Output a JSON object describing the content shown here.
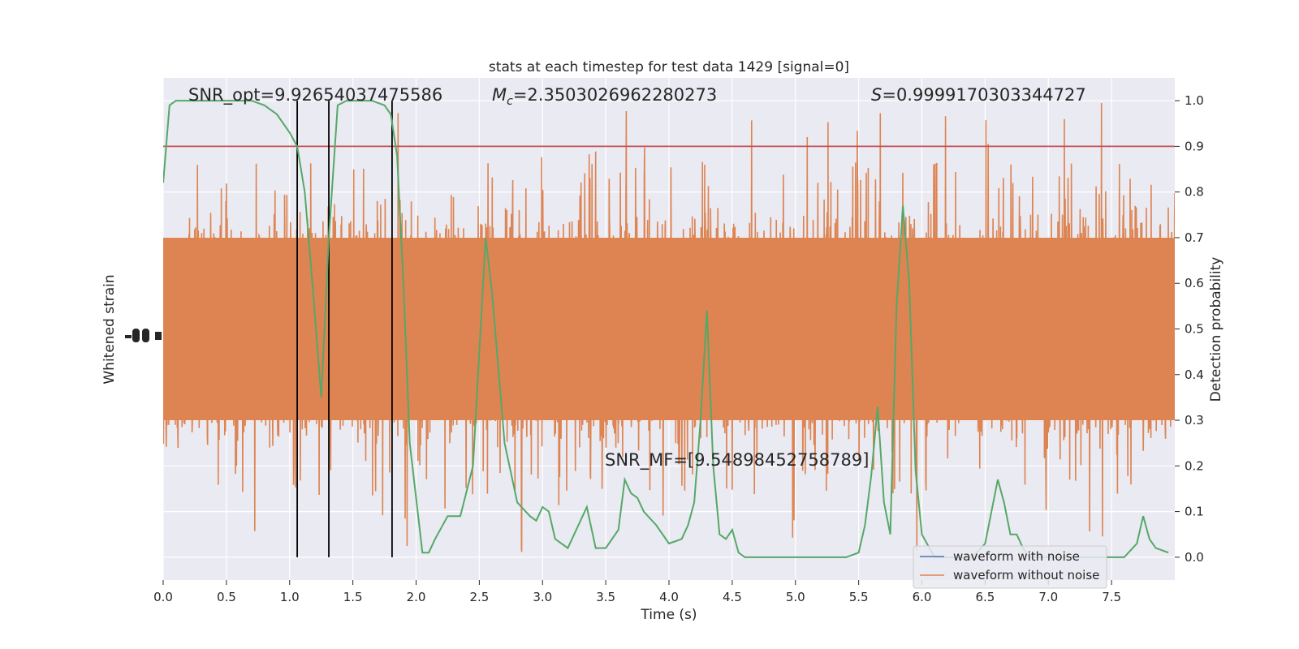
{
  "chart_data": {
    "type": "line",
    "title": "stats at each timestep for test data 1429 [signal=0]",
    "xlabel": "Time (s)",
    "ylabel_left": "Whitened strain",
    "ylabel_right": "Detection probability",
    "xlim": [
      0,
      8
    ],
    "ylim_right": [
      -0.05,
      1.05
    ],
    "x_ticks": [
      "0.0",
      "0.5",
      "1.0",
      "1.5",
      "2.0",
      "2.5",
      "3.0",
      "3.5",
      "4.0",
      "4.5",
      "5.0",
      "5.5",
      "6.0",
      "6.5",
      "7.0",
      "7.5"
    ],
    "y_ticks_right": [
      "0.0",
      "0.1",
      "0.2",
      "0.3",
      "0.4",
      "0.5",
      "0.6",
      "0.7",
      "0.8",
      "0.9",
      "1.0"
    ],
    "grid": true,
    "legend": {
      "placement": "lower-right",
      "entries": [
        "waveform with noise",
        "waveform without noise"
      ]
    },
    "threshold": 0.9,
    "vertical_markers": [
      1.06,
      1.31,
      1.81
    ],
    "annotations": {
      "snr_opt": "SNR_opt=9.92654037475586",
      "mc_symbol": "M",
      "mc_sub": "c",
      "mc_value": "=2.350302696228027​3",
      "s_symbol": "S",
      "s_value": "=0.9999170303344727",
      "snr_mf": "SNR_MF=[9.54898452758789]"
    },
    "series": [
      {
        "name": "waveform with noise",
        "color": "#4c72b0"
      },
      {
        "name": "waveform without noise",
        "color": "#dd8452",
        "noise_band_upper": 0.7,
        "noise_band_lower": 0.3,
        "spike_max": 1.0,
        "spike_min": 0.0
      },
      {
        "color": "#55a868",
        "x": [
          0,
          0.05,
          0.1,
          0.2,
          0.35,
          0.5,
          0.6,
          0.7,
          0.8,
          0.9,
          0.95,
          1.0,
          1.06,
          1.12,
          1.18,
          1.25,
          1.31,
          1.38,
          1.45,
          1.55,
          1.65,
          1.75,
          1.8,
          1.85,
          1.9,
          1.95,
          2.0,
          2.05,
          2.1,
          2.15,
          2.25,
          2.35,
          2.45,
          2.55,
          2.6,
          2.7,
          2.8,
          2.9,
          2.95,
          3.0,
          3.05,
          3.1,
          3.2,
          3.25,
          3.35,
          3.42,
          3.5,
          3.6,
          3.65,
          3.7,
          3.75,
          3.8,
          3.9,
          4.0,
          4.1,
          4.15,
          4.2,
          4.25,
          4.3,
          4.35,
          4.4,
          4.45,
          4.5,
          4.55,
          4.6,
          4.7,
          4.8,
          4.9,
          5.0,
          5.2,
          5.4,
          5.5,
          5.55,
          5.6,
          5.65,
          5.7,
          5.75,
          5.8,
          5.85,
          5.9,
          5.95,
          6.0,
          6.1,
          6.2,
          6.3,
          6.4,
          6.5,
          6.6,
          6.65,
          6.7,
          6.75,
          6.8,
          6.85,
          6.9,
          6.95,
          7.0,
          7.2,
          7.4,
          7.5,
          7.6,
          7.7,
          7.75,
          7.8,
          7.85,
          7.95
        ],
        "values": [
          0.82,
          0.99,
          1.0,
          1.0,
          1.0,
          1.0,
          1.0,
          1.0,
          0.99,
          0.97,
          0.95,
          0.93,
          0.9,
          0.8,
          0.6,
          0.35,
          0.7,
          0.99,
          1.0,
          1.0,
          1.0,
          0.99,
          0.97,
          0.88,
          0.6,
          0.25,
          0.13,
          0.01,
          0.01,
          0.04,
          0.09,
          0.09,
          0.2,
          0.7,
          0.58,
          0.25,
          0.12,
          0.09,
          0.08,
          0.11,
          0.1,
          0.04,
          0.02,
          0.05,
          0.11,
          0.02,
          0.02,
          0.06,
          0.17,
          0.14,
          0.13,
          0.1,
          0.07,
          0.03,
          0.04,
          0.07,
          0.12,
          0.3,
          0.54,
          0.2,
          0.05,
          0.04,
          0.06,
          0.01,
          0.0,
          0.0,
          0.0,
          0.0,
          0.0,
          0.0,
          0.0,
          0.01,
          0.07,
          0.18,
          0.33,
          0.12,
          0.05,
          0.55,
          0.77,
          0.6,
          0.19,
          0.05,
          0.0,
          0.0,
          0.0,
          0.0,
          0.03,
          0.17,
          0.12,
          0.05,
          0.05,
          0.02,
          0.0,
          0.0,
          0.0,
          0.0,
          0.0,
          0.0,
          0.0,
          0.0,
          0.03,
          0.09,
          0.04,
          0.02,
          0.01
        ]
      }
    ]
  }
}
